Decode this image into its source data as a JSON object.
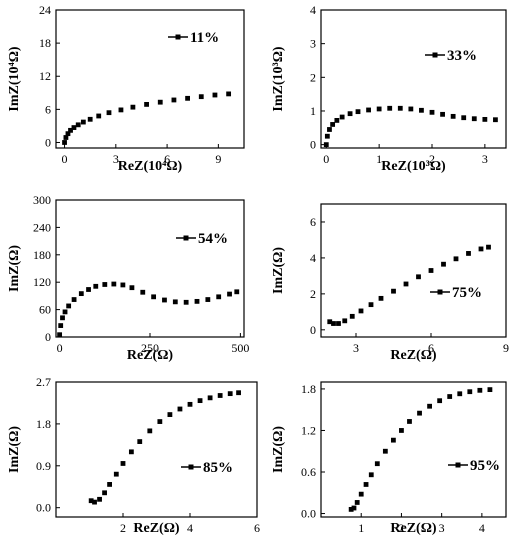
{
  "chart_data": [
    {
      "type": "scatter",
      "xlabel": "ReZ(10⁴Ω)",
      "ylabel": "ImZ(10⁴Ω)",
      "xlim": [
        -0.5,
        10.5
      ],
      "ylim": [
        -1,
        24
      ],
      "xticks": [
        0,
        3,
        6,
        9
      ],
      "yticks": [
        0,
        6,
        12,
        18,
        24
      ],
      "xtick_labels": [
        "0",
        "3",
        "6",
        "9"
      ],
      "ytick_labels": [
        "0",
        "6",
        "12",
        "18",
        "24"
      ],
      "legend": "11%",
      "legend_position": "top-right",
      "series": [
        {
          "x": [
            0,
            0.08,
            0.2,
            0.35,
            0.55,
            0.8,
            1.1,
            1.5,
            2.0,
            2.6,
            3.3,
            4.0,
            4.8,
            5.6,
            6.4,
            7.2,
            8.0,
            8.8,
            9.6
          ],
          "y": [
            0,
            0.9,
            1.6,
            2.2,
            2.7,
            3.2,
            3.7,
            4.2,
            4.8,
            5.4,
            5.9,
            6.4,
            6.9,
            7.3,
            7.7,
            8.0,
            8.3,
            8.6,
            8.8
          ]
        }
      ]
    },
    {
      "type": "scatter",
      "xlabel": "ReZ(10³Ω)",
      "ylabel": "ImZ(10³Ω)",
      "xlim": [
        -0.1,
        3.4
      ],
      "ylim": [
        -0.1,
        4
      ],
      "xticks": [
        0,
        1,
        2,
        3
      ],
      "yticks": [
        0,
        1,
        2,
        3,
        4
      ],
      "xtick_labels": [
        "0",
        "1",
        "2",
        "3"
      ],
      "ytick_labels": [
        "0",
        "1",
        "2",
        "3",
        "4"
      ],
      "legend": "33%",
      "legend_position": "top-right",
      "series": [
        {
          "x": [
            0,
            0.02,
            0.06,
            0.12,
            0.2,
            0.3,
            0.45,
            0.6,
            0.8,
            1.0,
            1.2,
            1.4,
            1.6,
            1.8,
            2.0,
            2.2,
            2.4,
            2.6,
            2.8,
            3.0,
            3.2
          ],
          "y": [
            0,
            0.25,
            0.45,
            0.6,
            0.72,
            0.82,
            0.92,
            0.98,
            1.03,
            1.06,
            1.08,
            1.08,
            1.06,
            1.02,
            0.96,
            0.9,
            0.84,
            0.8,
            0.77,
            0.75,
            0.74
          ]
        }
      ]
    },
    {
      "type": "scatter",
      "xlabel": "ReZ(Ω)",
      "ylabel": "ImZ(Ω)",
      "xlim": [
        -10,
        510
      ],
      "ylim": [
        0,
        300
      ],
      "xticks": [
        0,
        250,
        500
      ],
      "yticks": [
        0,
        60,
        120,
        180,
        240,
        300
      ],
      "xtick_labels": [
        "0",
        "250",
        "500"
      ],
      "ytick_labels": [
        "0",
        "60",
        "120",
        "180",
        "240",
        "300"
      ],
      "legend": "54%",
      "legend_position": "top-right",
      "series": [
        {
          "x": [
            0,
            3,
            8,
            15,
            25,
            40,
            60,
            80,
            100,
            125,
            150,
            175,
            200,
            230,
            260,
            290,
            320,
            350,
            380,
            410,
            440,
            470,
            490
          ],
          "y": [
            5,
            25,
            42,
            55,
            68,
            82,
            95,
            104,
            111,
            115,
            116,
            114,
            108,
            98,
            88,
            81,
            77,
            76,
            78,
            82,
            88,
            94,
            99
          ]
        }
      ]
    },
    {
      "type": "scatter",
      "xlabel": "ReZ(Ω)",
      "ylabel": "ImZ(Ω)",
      "xlim": [
        1.6,
        9
      ],
      "ylim": [
        -0.4,
        7
      ],
      "xticks": [
        3,
        6,
        9
      ],
      "yticks": [
        0,
        2,
        4,
        6
      ],
      "xtick_labels": [
        "3",
        "6",
        "9"
      ],
      "ytick_labels": [
        "0",
        "2",
        "4",
        "6"
      ],
      "legend": "75%",
      "legend_position": "right",
      "series": [
        {
          "x": [
            1.95,
            2.1,
            2.3,
            2.55,
            2.85,
            3.2,
            3.6,
            4.0,
            4.5,
            5.0,
            5.5,
            6.0,
            6.5,
            7.0,
            7.5,
            8.0,
            8.3
          ],
          "y": [
            0.45,
            0.35,
            0.35,
            0.5,
            0.75,
            1.05,
            1.4,
            1.75,
            2.15,
            2.55,
            2.95,
            3.3,
            3.65,
            3.95,
            4.25,
            4.5,
            4.6
          ]
        }
      ]
    },
    {
      "type": "scatter",
      "xlabel": "ReZ(Ω)",
      "ylabel": "ImZ(Ω)",
      "xlim": [
        0,
        6
      ],
      "ylim": [
        -0.2,
        2.7
      ],
      "xticks": [
        2,
        4,
        6
      ],
      "yticks": [
        0.0,
        0.9,
        1.8,
        2.7
      ],
      "xtick_labels": [
        "2",
        "4",
        "6"
      ],
      "ytick_labels": [
        "0.0",
        "0.9",
        "1.8",
        "2.7"
      ],
      "legend": "85%",
      "legend_position": "right",
      "series": [
        {
          "x": [
            1.05,
            1.15,
            1.3,
            1.45,
            1.6,
            1.8,
            2.0,
            2.25,
            2.5,
            2.8,
            3.1,
            3.4,
            3.7,
            4.0,
            4.3,
            4.6,
            4.9,
            5.2,
            5.45
          ],
          "y": [
            0.15,
            0.12,
            0.18,
            0.32,
            0.5,
            0.72,
            0.95,
            1.2,
            1.42,
            1.65,
            1.85,
            2.0,
            2.12,
            2.22,
            2.3,
            2.36,
            2.41,
            2.45,
            2.47
          ]
        }
      ]
    },
    {
      "type": "scatter",
      "xlabel": "ReZ(Ω)",
      "ylabel": "ImZ(Ω)",
      "xlim": [
        0,
        4.6
      ],
      "ylim": [
        -0.05,
        1.9
      ],
      "xticks": [
        1,
        2,
        3,
        4
      ],
      "yticks": [
        0.0,
        0.6,
        1.2,
        1.8
      ],
      "xtick_labels": [
        "1",
        "2",
        "3",
        "4"
      ],
      "ytick_labels": [
        "0.0",
        "0.6",
        "1.2",
        "1.8"
      ],
      "legend": "95%",
      "legend_position": "right",
      "series": [
        {
          "x": [
            0.75,
            0.82,
            0.9,
            1.0,
            1.12,
            1.25,
            1.4,
            1.6,
            1.8,
            2.0,
            2.2,
            2.45,
            2.7,
            2.95,
            3.2,
            3.45,
            3.7,
            3.95,
            4.2
          ],
          "y": [
            0.06,
            0.08,
            0.16,
            0.28,
            0.42,
            0.56,
            0.72,
            0.9,
            1.06,
            1.2,
            1.33,
            1.45,
            1.55,
            1.63,
            1.69,
            1.73,
            1.76,
            1.78,
            1.79
          ]
        }
      ]
    }
  ]
}
